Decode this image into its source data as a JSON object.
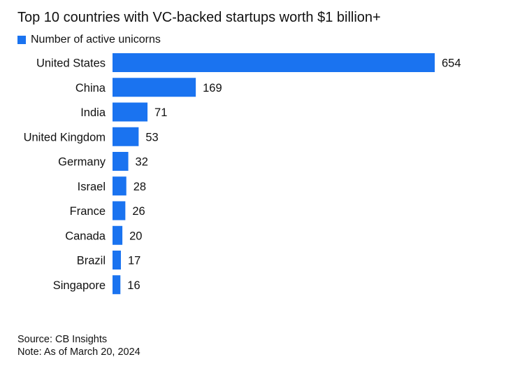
{
  "chart_data": {
    "type": "bar",
    "orientation": "horizontal",
    "title": "Top 10 countries with VC-backed startups worth $1 billion+",
    "categories": [
      "United States",
      "China",
      "India",
      "United Kingdom",
      "Germany",
      "Israel",
      "France",
      "Canada",
      "Brazil",
      "Singapore"
    ],
    "series": [
      {
        "name": "Number of active unicorns",
        "values": [
          654,
          169,
          71,
          53,
          32,
          28,
          26,
          20,
          17,
          16
        ],
        "color": "#1a73f0"
      }
    ],
    "data_labels": [
      "654",
      "169",
      "71",
      "53",
      "32",
      "28",
      "26",
      "20",
      "17",
      "16"
    ],
    "xlim": [
      0,
      654
    ],
    "grid": false,
    "legend_position": "top-left"
  },
  "footer": {
    "source": "Source: CB Insights",
    "note": "Note: As of March 20, 2024"
  }
}
